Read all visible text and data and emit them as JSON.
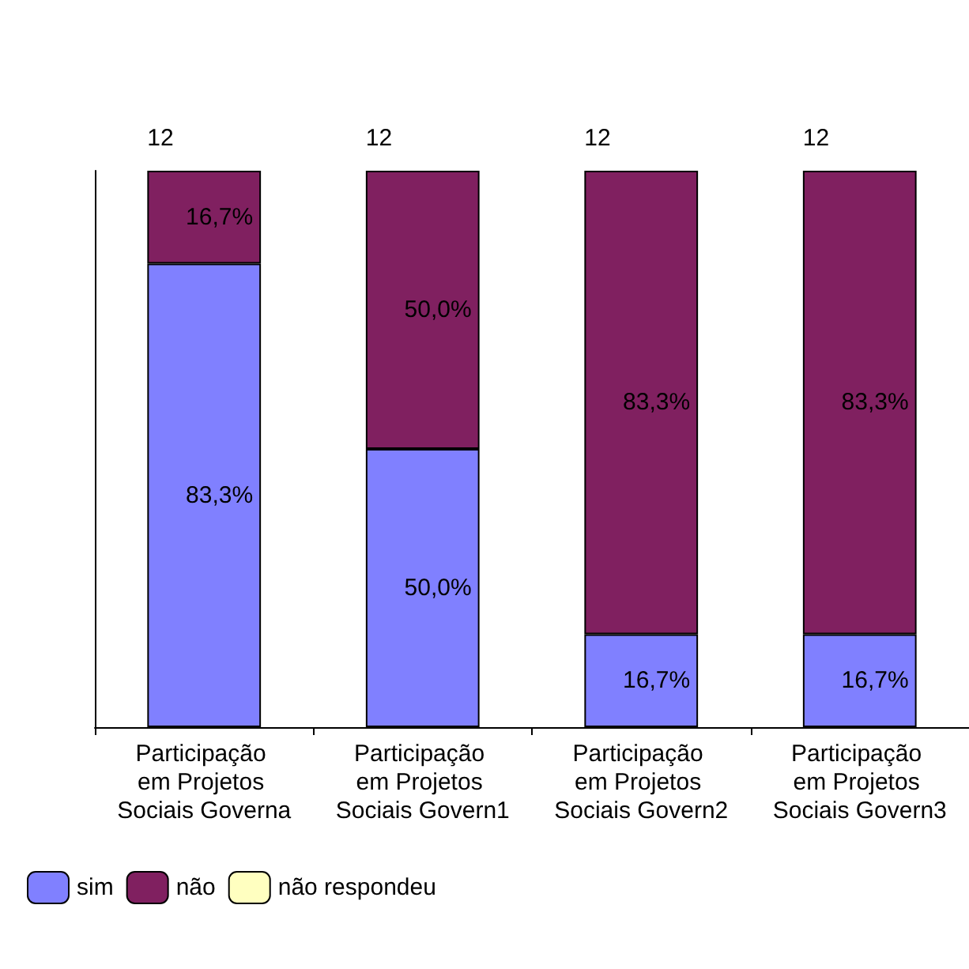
{
  "chart_data": {
    "type": "bar",
    "stacked": true,
    "categories": [
      "Participação em Projetos Sociais Governa",
      "Participação em Projetos Sociais Govern1",
      "Participação em Projetos Sociais Govern2",
      "Participação em Projetos Sociais Govern3"
    ],
    "series": [
      {
        "name": "sim",
        "color": "#8080ff",
        "values": [
          83.3,
          50.0,
          16.7,
          16.7
        ],
        "value_labels": [
          "83,3%",
          "50,0%",
          "16,7%",
          "16,7%"
        ]
      },
      {
        "name": "não",
        "color": "#802060",
        "values": [
          16.7,
          50.0,
          83.3,
          83.3
        ],
        "value_labels": [
          "16,7%",
          "50,0%",
          "83,3%",
          "83,3%"
        ]
      },
      {
        "name": "não respondeu",
        "color": "#ffffc0",
        "values": [
          null,
          null,
          null,
          null
        ]
      }
    ],
    "ylim": [
      0,
      100
    ],
    "tick_labels": "x",
    "grid": false,
    "legend": "bottom left",
    "annotations": [
      {
        "text": "12",
        "x": "Participação em Projetos Sociais Governa",
        "y": 100
      },
      {
        "text": "12",
        "x": "Participação em Projetos Sociais Govern1",
        "y": 100
      },
      {
        "text": "12",
        "x": "Participação em Projetos Sociais Govern2",
        "y": 100
      },
      {
        "text": "12",
        "x": "Participação em Projetos Sociais Govern3",
        "y": 100
      }
    ]
  }
}
